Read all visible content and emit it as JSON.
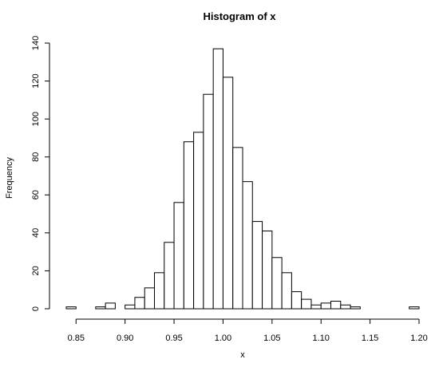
{
  "chart_data": {
    "type": "bar",
    "title": "Histogram of x",
    "xlabel": "x",
    "ylabel": "Frequency",
    "xlim": [
      0.84,
      1.2
    ],
    "ylim": [
      0,
      140
    ],
    "bin_width": 0.01,
    "bins": [
      {
        "start": 0.84,
        "end": 0.85,
        "count": 1
      },
      {
        "start": 0.85,
        "end": 0.86,
        "count": 0
      },
      {
        "start": 0.86,
        "end": 0.87,
        "count": 0
      },
      {
        "start": 0.87,
        "end": 0.88,
        "count": 1
      },
      {
        "start": 0.88,
        "end": 0.89,
        "count": 3
      },
      {
        "start": 0.89,
        "end": 0.9,
        "count": 0
      },
      {
        "start": 0.9,
        "end": 0.91,
        "count": 2
      },
      {
        "start": 0.91,
        "end": 0.92,
        "count": 6
      },
      {
        "start": 0.92,
        "end": 0.93,
        "count": 11
      },
      {
        "start": 0.93,
        "end": 0.94,
        "count": 19
      },
      {
        "start": 0.94,
        "end": 0.95,
        "count": 35
      },
      {
        "start": 0.95,
        "end": 0.96,
        "count": 56
      },
      {
        "start": 0.96,
        "end": 0.97,
        "count": 88
      },
      {
        "start": 0.97,
        "end": 0.98,
        "count": 93
      },
      {
        "start": 0.98,
        "end": 0.99,
        "count": 113
      },
      {
        "start": 0.99,
        "end": 1.0,
        "count": 137
      },
      {
        "start": 1.0,
        "end": 1.01,
        "count": 122
      },
      {
        "start": 1.01,
        "end": 1.02,
        "count": 85
      },
      {
        "start": 1.02,
        "end": 1.03,
        "count": 67
      },
      {
        "start": 1.03,
        "end": 1.04,
        "count": 46
      },
      {
        "start": 1.04,
        "end": 1.05,
        "count": 41
      },
      {
        "start": 1.05,
        "end": 1.06,
        "count": 27
      },
      {
        "start": 1.06,
        "end": 1.07,
        "count": 19
      },
      {
        "start": 1.07,
        "end": 1.08,
        "count": 9
      },
      {
        "start": 1.08,
        "end": 1.09,
        "count": 5
      },
      {
        "start": 1.09,
        "end": 1.1,
        "count": 2
      },
      {
        "start": 1.1,
        "end": 1.11,
        "count": 3
      },
      {
        "start": 1.11,
        "end": 1.12,
        "count": 4
      },
      {
        "start": 1.12,
        "end": 1.13,
        "count": 2
      },
      {
        "start": 1.13,
        "end": 1.14,
        "count": 1
      },
      {
        "start": 1.14,
        "end": 1.15,
        "count": 0
      },
      {
        "start": 1.15,
        "end": 1.16,
        "count": 0
      },
      {
        "start": 1.16,
        "end": 1.17,
        "count": 0
      },
      {
        "start": 1.17,
        "end": 1.18,
        "count": 0
      },
      {
        "start": 1.18,
        "end": 1.19,
        "count": 0
      },
      {
        "start": 1.19,
        "end": 1.2,
        "count": 1
      }
    ],
    "x_ticks": [
      "0.85",
      "0.90",
      "0.95",
      "1.00",
      "1.05",
      "1.10",
      "1.15",
      "1.20"
    ],
    "y_ticks": [
      "0",
      "20",
      "40",
      "60",
      "80",
      "100",
      "120",
      "140"
    ],
    "bar_fill": "#ffffff",
    "bar_stroke": "#000000",
    "grid": false,
    "legend": "none"
  }
}
